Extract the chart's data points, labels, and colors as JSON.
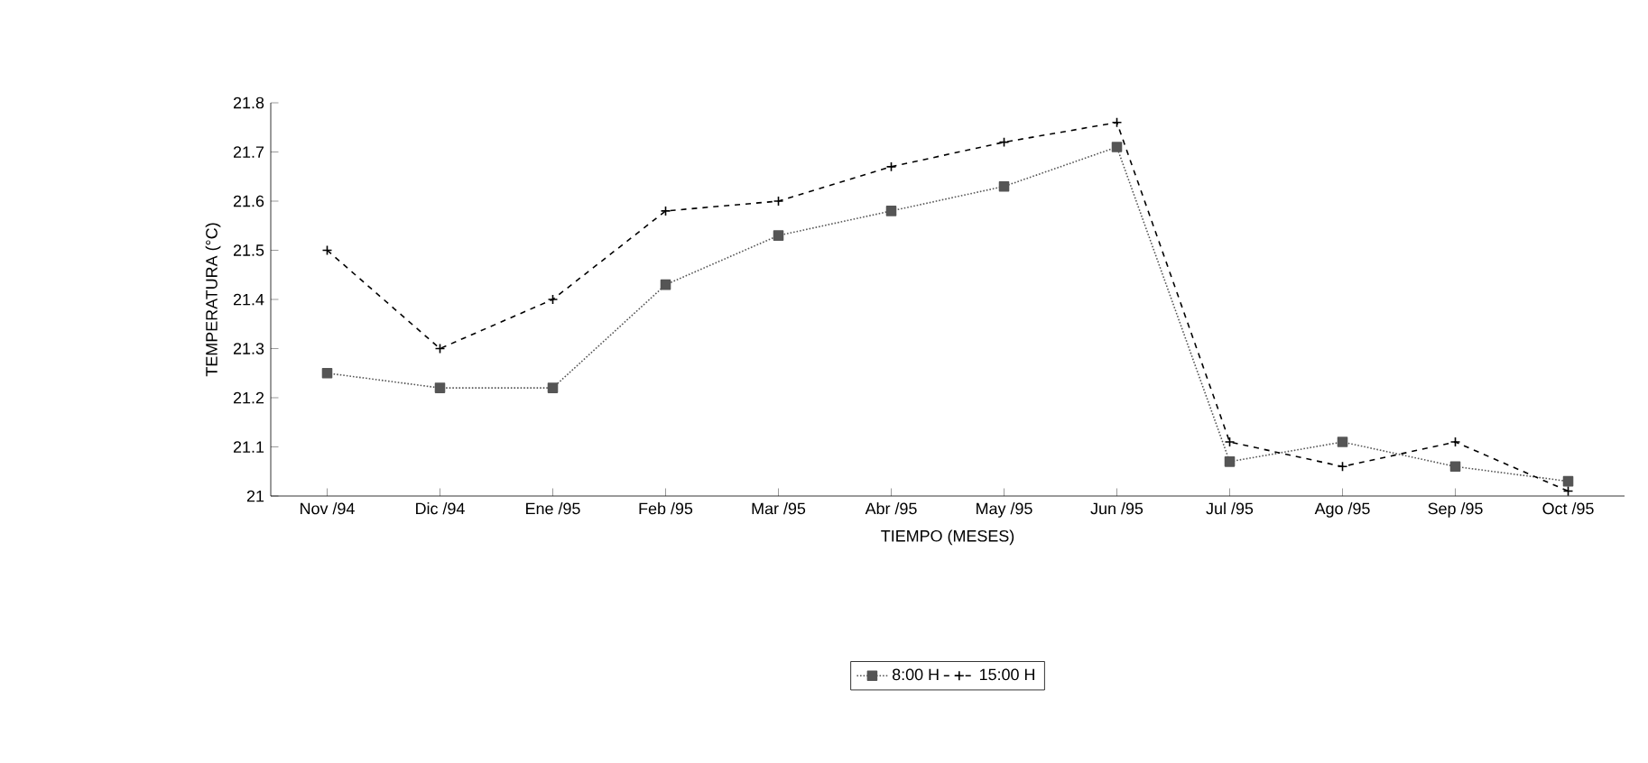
{
  "chart_data": {
    "type": "line",
    "xlabel": "TIEMPO (MESES)",
    "ylabel": "TEMPERATURA (°C)",
    "categories": [
      "Nov /94",
      "Dic /94",
      "Ene /95",
      "Feb /95",
      "Mar /95",
      "Abr /95",
      "May /95",
      "Jun /95",
      "Jul /95",
      "Ago /95",
      "Sep /95",
      "Oct /95"
    ],
    "ylim": [
      21,
      21.8
    ],
    "yticks": [
      21,
      21.1,
      21.2,
      21.3,
      21.4,
      21.5,
      21.6,
      21.7,
      21.8
    ],
    "legend": "bottom",
    "grid": false,
    "series": [
      {
        "name": "8:00 H",
        "color": "#555555",
        "marker": "square",
        "line_style": "dotted",
        "values": [
          21.25,
          21.22,
          21.22,
          21.43,
          21.53,
          21.58,
          21.63,
          21.71,
          21.07,
          21.11,
          21.06,
          21.03
        ]
      },
      {
        "name": "15:00 H",
        "color": "#000000",
        "marker": "cross",
        "line_style": "dashed",
        "values": [
          21.5,
          21.3,
          21.4,
          21.58,
          21.6,
          21.67,
          21.72,
          21.76,
          21.11,
          21.06,
          21.11,
          21.01
        ]
      }
    ]
  }
}
